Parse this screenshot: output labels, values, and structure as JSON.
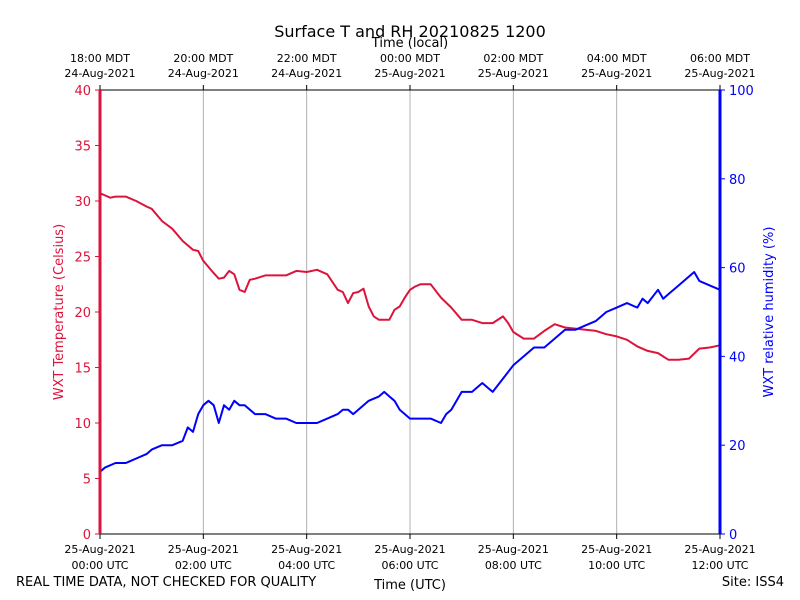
{
  "chart_data": {
    "type": "line",
    "title": "Surface T and RH 20210825 1200",
    "top_axis_label": "Time (local)",
    "xlabel": "Time (UTC)",
    "ylabel_left": "WXT Temperature (Celsius)",
    "ylabel_right": "WXT relative humidity (%)",
    "xlim_hours_utc": [
      0,
      12
    ],
    "ylim_left": [
      0,
      40
    ],
    "ylim_right": [
      0,
      100
    ],
    "yticks_left": [
      0,
      5,
      10,
      15,
      20,
      25,
      30,
      35,
      40
    ],
    "yticks_right": [
      0,
      20,
      40,
      60,
      80,
      100
    ],
    "grid": "vertical",
    "colors": {
      "temperature": "#dc143c",
      "humidity": "#0000ff",
      "grid": "#b0b0b0"
    },
    "bottom_ticks": [
      {
        "hour": 0,
        "line1": "25-Aug-2021",
        "line2": "00:00 UTC"
      },
      {
        "hour": 2,
        "line1": "25-Aug-2021",
        "line2": "02:00 UTC"
      },
      {
        "hour": 4,
        "line1": "25-Aug-2021",
        "line2": "04:00 UTC"
      },
      {
        "hour": 6,
        "line1": "25-Aug-2021",
        "line2": "06:00 UTC"
      },
      {
        "hour": 8,
        "line1": "25-Aug-2021",
        "line2": "08:00 UTC"
      },
      {
        "hour": 10,
        "line1": "25-Aug-2021",
        "line2": "10:00 UTC"
      },
      {
        "hour": 12,
        "line1": "25-Aug-2021",
        "line2": "12:00 UTC"
      }
    ],
    "top_ticks": [
      {
        "hour": 0,
        "line1": "18:00 MDT",
        "line2": "24-Aug-2021"
      },
      {
        "hour": 2,
        "line1": "20:00 MDT",
        "line2": "24-Aug-2021"
      },
      {
        "hour": 4,
        "line1": "22:00 MDT",
        "line2": "24-Aug-2021"
      },
      {
        "hour": 6,
        "line1": "00:00 MDT",
        "line2": "25-Aug-2021"
      },
      {
        "hour": 8,
        "line1": "02:00 MDT",
        "line2": "25-Aug-2021"
      },
      {
        "hour": 10,
        "line1": "04:00 MDT",
        "line2": "25-Aug-2021"
      },
      {
        "hour": 12,
        "line1": "06:00 MDT",
        "line2": "25-Aug-2021"
      }
    ],
    "series": [
      {
        "name": "WXT Temperature",
        "axis": "left",
        "color": "#dc143c",
        "x": [
          0.0,
          0.1,
          0.2,
          0.3,
          0.5,
          0.7,
          0.9,
          1.0,
          1.2,
          1.4,
          1.6,
          1.7,
          1.8,
          1.9,
          2.0,
          2.2,
          2.3,
          2.4,
          2.5,
          2.6,
          2.7,
          2.8,
          2.9,
          3.0,
          3.2,
          3.4,
          3.6,
          3.8,
          4.0,
          4.2,
          4.4,
          4.6,
          4.7,
          4.8,
          4.9,
          5.0,
          5.1,
          5.2,
          5.3,
          5.4,
          5.6,
          5.7,
          5.8,
          5.9,
          6.0,
          6.1,
          6.2,
          6.4,
          6.6,
          6.8,
          7.0,
          7.2,
          7.4,
          7.6,
          7.8,
          7.9,
          8.0,
          8.2,
          8.4,
          8.6,
          8.8,
          9.0,
          9.2,
          9.4,
          9.6,
          9.8,
          10.0,
          10.2,
          10.4,
          10.6,
          10.8,
          11.0,
          11.2,
          11.4,
          11.6,
          11.8,
          12.0
        ],
        "values": [
          30.7,
          30.5,
          30.3,
          30.4,
          30.4,
          30.0,
          29.5,
          29.3,
          28.2,
          27.5,
          26.4,
          26.0,
          25.6,
          25.5,
          24.6,
          23.5,
          23.0,
          23.1,
          23.7,
          23.4,
          22.0,
          21.8,
          22.9,
          23.0,
          23.3,
          23.3,
          23.3,
          23.7,
          23.6,
          23.8,
          23.4,
          22.0,
          21.8,
          20.8,
          21.7,
          21.8,
          22.1,
          20.5,
          19.6,
          19.3,
          19.3,
          20.2,
          20.5,
          21.3,
          22.0,
          22.3,
          22.5,
          22.5,
          21.3,
          20.4,
          19.3,
          19.3,
          19.0,
          19.0,
          19.6,
          19.0,
          18.2,
          17.6,
          17.6,
          18.3,
          18.9,
          18.6,
          18.5,
          18.4,
          18.3,
          18.0,
          17.8,
          17.5,
          16.9,
          16.5,
          16.3,
          15.7,
          15.7,
          15.8,
          16.7,
          16.8,
          17.0
        ]
      },
      {
        "name": "WXT relative humidity",
        "axis": "right",
        "color": "#0000ff",
        "x": [
          0.0,
          0.1,
          0.3,
          0.5,
          0.7,
          0.9,
          1.0,
          1.2,
          1.4,
          1.6,
          1.7,
          1.8,
          1.9,
          2.0,
          2.1,
          2.2,
          2.3,
          2.4,
          2.5,
          2.6,
          2.7,
          2.8,
          3.0,
          3.2,
          3.4,
          3.6,
          3.8,
          4.0,
          4.2,
          4.4,
          4.6,
          4.7,
          4.8,
          4.9,
          5.0,
          5.2,
          5.4,
          5.5,
          5.6,
          5.7,
          5.8,
          5.9,
          6.0,
          6.2,
          6.4,
          6.6,
          6.7,
          6.8,
          7.0,
          7.2,
          7.4,
          7.5,
          7.6,
          7.8,
          8.0,
          8.2,
          8.4,
          8.6,
          8.8,
          9.0,
          9.2,
          9.4,
          9.6,
          9.8,
          10.0,
          10.2,
          10.4,
          10.5,
          10.6,
          10.8,
          10.9,
          11.0,
          11.2,
          11.4,
          11.5,
          11.6,
          11.8,
          12.0
        ],
        "values": [
          14,
          15,
          16,
          16,
          17,
          18,
          19,
          20,
          20,
          21,
          24,
          23,
          27,
          29,
          30,
          29,
          25,
          29,
          28,
          30,
          29,
          29,
          27,
          27,
          26,
          26,
          25,
          25,
          25,
          26,
          27,
          28,
          28,
          27,
          28,
          30,
          31,
          32,
          31,
          30,
          28,
          27,
          26,
          26,
          26,
          25,
          27,
          28,
          32,
          32,
          34,
          33,
          32,
          35,
          38,
          40,
          42,
          42,
          44,
          46,
          46,
          47,
          48,
          50,
          51,
          52,
          51,
          53,
          52,
          55,
          53,
          54,
          56,
          58,
          59,
          57,
          56,
          55
        ]
      }
    ]
  },
  "footer": {
    "left_note": "REAL TIME DATA, NOT CHECKED FOR QUALITY",
    "right_note": "Site: ISS4"
  }
}
